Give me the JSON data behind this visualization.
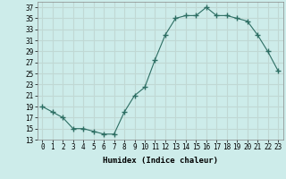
{
  "x": [
    0,
    1,
    2,
    3,
    4,
    5,
    6,
    7,
    8,
    9,
    10,
    11,
    12,
    13,
    14,
    15,
    16,
    17,
    18,
    19,
    20,
    21,
    22,
    23
  ],
  "y": [
    19,
    18,
    17,
    15,
    15,
    14.5,
    14,
    14,
    18,
    21,
    22.5,
    27.5,
    32,
    35,
    35.5,
    35.5,
    37,
    35.5,
    35.5,
    35,
    34.5,
    32,
    29,
    25.5
  ],
  "line_color": "#2d6e63",
  "marker": "+",
  "marker_size": 4,
  "background_color": "#cdecea",
  "grid_color": "#c0d8d4",
  "xlabel": "Humidex (Indice chaleur)",
  "ylim": [
    13,
    38
  ],
  "xlim": [
    -0.5,
    23.5
  ],
  "yticks": [
    13,
    15,
    17,
    19,
    21,
    23,
    25,
    27,
    29,
    31,
    33,
    35,
    37
  ],
  "xticks": [
    0,
    1,
    2,
    3,
    4,
    5,
    6,
    7,
    8,
    9,
    10,
    11,
    12,
    13,
    14,
    15,
    16,
    17,
    18,
    19,
    20,
    21,
    22,
    23
  ],
  "tick_fontsize": 5.5,
  "label_fontsize": 6.5
}
